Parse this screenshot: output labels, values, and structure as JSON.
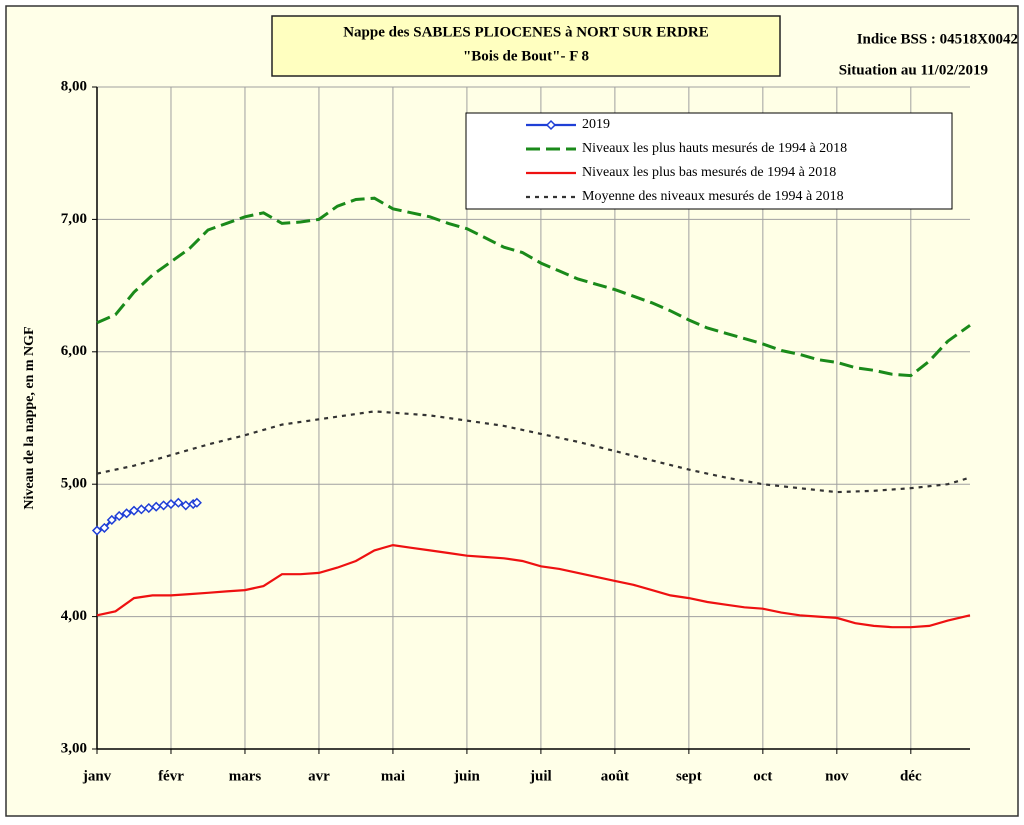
{
  "chart_data": {
    "type": "line",
    "title": [
      "Nappe des SABLES PLIOCENES à NORT SUR ERDRE",
      "\"Bois de Bout\"-  F 8"
    ],
    "annotations": [
      "Indice BSS : 04518X0042",
      "Situation au 11/02/2019"
    ],
    "y_label": "Niveau de la nappe, en m NGF",
    "xlim": [
      0,
      11.8
    ],
    "xticks": [
      {
        "value": 0,
        "label": "janv"
      },
      {
        "value": 1,
        "label": "févr"
      },
      {
        "value": 2,
        "label": "mars"
      },
      {
        "value": 3,
        "label": "avr"
      },
      {
        "value": 4,
        "label": "mai"
      },
      {
        "value": 5,
        "label": "juin"
      },
      {
        "value": 6,
        "label": "juil"
      },
      {
        "value": 7,
        "label": "août"
      },
      {
        "value": 8,
        "label": "sept"
      },
      {
        "value": 9,
        "label": "oct"
      },
      {
        "value": 10,
        "label": "nov"
      },
      {
        "value": 11,
        "label": "déc"
      }
    ],
    "ylim": [
      3,
      8
    ],
    "yticks": [
      {
        "value": 3,
        "label": "3,00"
      },
      {
        "value": 4,
        "label": "4,00"
      },
      {
        "value": 5,
        "label": "5,00"
      },
      {
        "value": 6,
        "label": "6,00"
      },
      {
        "value": 7,
        "label": "7,00"
      },
      {
        "value": 8,
        "label": "8,00"
      }
    ],
    "grid": true,
    "legend": "upper right",
    "series": [
      {
        "name": "2019",
        "color": "#1f3fd6",
        "style": "solid",
        "marker": "diamond",
        "x": [
          0,
          0.1,
          0.2,
          0.3,
          0.4,
          0.5,
          0.6,
          0.7,
          0.8,
          0.9,
          1.0,
          1.1,
          1.2,
          1.3,
          1.35
        ],
        "values": [
          4.65,
          4.67,
          4.73,
          4.76,
          4.78,
          4.8,
          4.81,
          4.82,
          4.83,
          4.84,
          4.85,
          4.86,
          4.84,
          4.85,
          4.86
        ]
      },
      {
        "name": "Niveaux les plus hauts mesurés de 1994 à 2018",
        "color": "#1a8a1a",
        "style": "dashed",
        "x": [
          0,
          0.25,
          0.5,
          0.75,
          1.0,
          1.25,
          1.5,
          1.75,
          2.0,
          2.25,
          2.5,
          2.75,
          3.0,
          3.25,
          3.5,
          3.75,
          4.0,
          4.25,
          4.5,
          4.75,
          5.0,
          5.25,
          5.5,
          5.75,
          6.0,
          6.25,
          6.5,
          6.75,
          7.0,
          7.25,
          7.5,
          7.75,
          8.0,
          8.25,
          8.5,
          8.75,
          9.0,
          9.25,
          9.5,
          9.75,
          10.0,
          10.25,
          10.5,
          10.75,
          11.0,
          11.25,
          11.5,
          11.8
        ],
        "values": [
          6.22,
          6.28,
          6.45,
          6.58,
          6.68,
          6.78,
          6.92,
          6.97,
          7.02,
          7.05,
          6.97,
          6.98,
          7.0,
          7.1,
          7.15,
          7.16,
          7.08,
          7.05,
          7.02,
          6.97,
          6.93,
          6.86,
          6.79,
          6.75,
          6.67,
          6.61,
          6.55,
          6.51,
          6.47,
          6.42,
          6.37,
          6.31,
          6.24,
          6.18,
          6.14,
          6.1,
          6.06,
          6.01,
          5.98,
          5.94,
          5.92,
          5.88,
          5.86,
          5.83,
          5.82,
          5.93,
          6.08,
          6.2
        ]
      },
      {
        "name": "Niveaux les plus bas mesurés de 1994 à 2018",
        "color": "#ee1111",
        "style": "solid",
        "x": [
          0,
          0.25,
          0.5,
          0.75,
          1.0,
          1.25,
          1.5,
          1.75,
          2.0,
          2.25,
          2.5,
          2.75,
          3.0,
          3.25,
          3.5,
          3.75,
          4.0,
          4.25,
          4.5,
          4.75,
          5.0,
          5.25,
          5.5,
          5.75,
          6.0,
          6.25,
          6.5,
          6.75,
          7.0,
          7.25,
          7.5,
          7.75,
          8.0,
          8.25,
          8.5,
          8.75,
          9.0,
          9.25,
          9.5,
          9.75,
          10.0,
          10.25,
          10.5,
          10.75,
          11.0,
          11.25,
          11.5,
          11.8
        ],
        "values": [
          4.01,
          4.04,
          4.14,
          4.16,
          4.16,
          4.17,
          4.18,
          4.19,
          4.2,
          4.23,
          4.32,
          4.32,
          4.33,
          4.37,
          4.42,
          4.5,
          4.54,
          4.52,
          4.5,
          4.48,
          4.46,
          4.45,
          4.44,
          4.42,
          4.38,
          4.36,
          4.33,
          4.3,
          4.27,
          4.24,
          4.2,
          4.16,
          4.14,
          4.11,
          4.09,
          4.07,
          4.06,
          4.03,
          4.01,
          4.0,
          3.99,
          3.95,
          3.93,
          3.92,
          3.92,
          3.93,
          3.97,
          4.01
        ]
      },
      {
        "name": "Moyenne des niveaux mesurés de 1994 à 2018",
        "color": "#333333",
        "style": "dotted",
        "x": [
          0,
          0.5,
          1.0,
          1.5,
          2.0,
          2.5,
          3.0,
          3.5,
          3.75,
          4.0,
          4.5,
          5.0,
          5.5,
          6.0,
          6.5,
          7.0,
          7.5,
          8.0,
          8.5,
          9.0,
          9.5,
          10.0,
          10.5,
          11.0,
          11.5,
          11.8
        ],
        "values": [
          5.08,
          5.14,
          5.22,
          5.3,
          5.37,
          5.45,
          5.49,
          5.53,
          5.55,
          5.54,
          5.52,
          5.48,
          5.44,
          5.38,
          5.32,
          5.25,
          5.18,
          5.11,
          5.05,
          5.0,
          4.97,
          4.94,
          4.95,
          4.97,
          5.0,
          5.05
        ]
      }
    ]
  }
}
